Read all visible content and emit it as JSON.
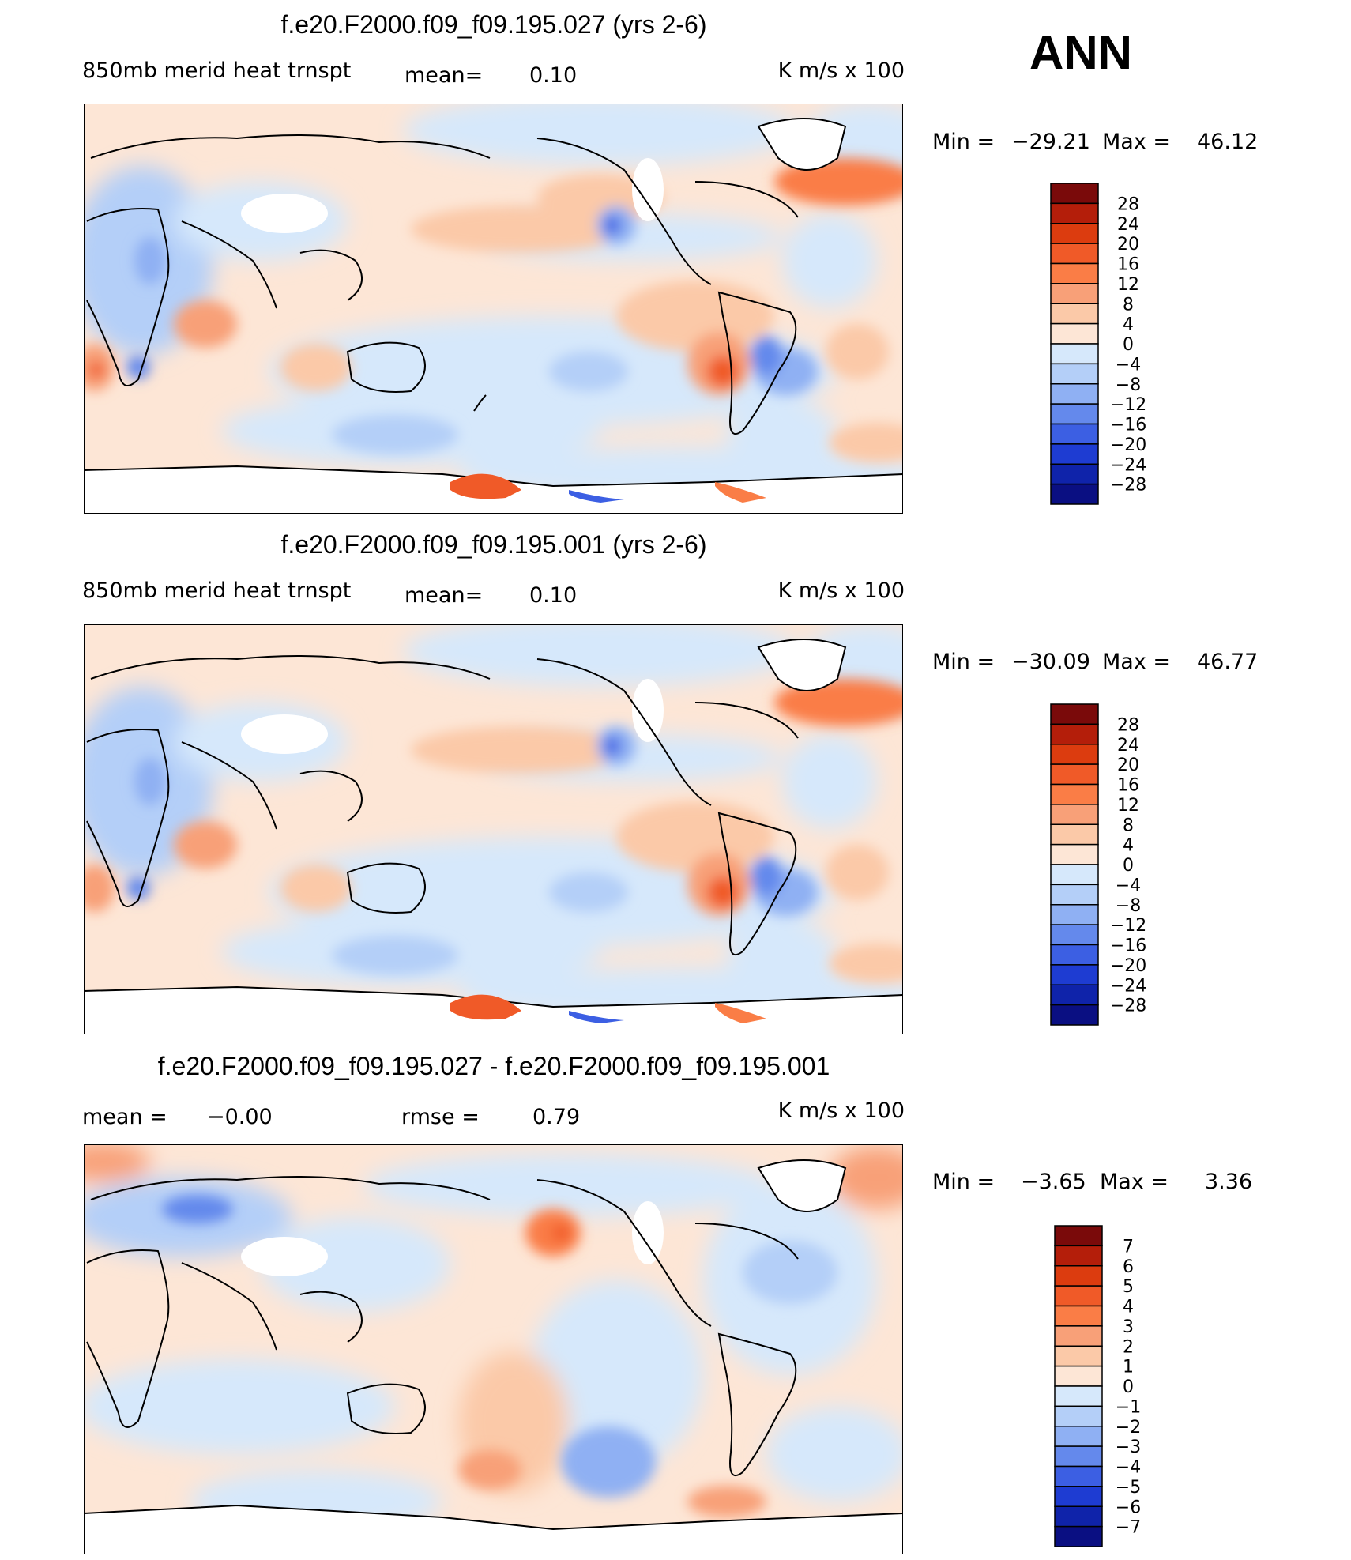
{
  "season_label": "ANN",
  "panels": [
    {
      "id": "test",
      "title": "f.e20.F2000.f09_f09.195.027 (yrs 2-6)",
      "left_label": "850mb merid heat trnspt",
      "center_label": "mean=",
      "center_value": "0.10",
      "units": "K m/s x 100",
      "min_label": "Min =",
      "min_value": "−29.21",
      "max_label": "Max =",
      "max_value": "46.12",
      "colorbar_labels": [
        "28",
        "24",
        "20",
        "16",
        "12",
        "8",
        "4",
        "0",
        "−4",
        "−8",
        "−12",
        "−16",
        "−20",
        "−24",
        "−28"
      ]
    },
    {
      "id": "control",
      "title": "f.e20.F2000.f09_f09.195.001 (yrs 2-6)",
      "left_label": "850mb merid heat trnspt",
      "center_label": "mean=",
      "center_value": "0.10",
      "units": "K m/s x 100",
      "min_label": "Min =",
      "min_value": "−30.09",
      "max_label": "Max =",
      "max_value": "46.77",
      "colorbar_labels": [
        "28",
        "24",
        "20",
        "16",
        "12",
        "8",
        "4",
        "0",
        "−4",
        "−8",
        "−12",
        "−16",
        "−20",
        "−24",
        "−28"
      ]
    },
    {
      "id": "difference",
      "title": "f.e20.F2000.f09_f09.195.027 - f.e20.F2000.f09_f09.195.001",
      "left_label": "mean =",
      "left_value": "−0.00",
      "center_label": "rmse =",
      "center_value": "0.79",
      "units": "K m/s x 100",
      "min_label": "Min =",
      "min_value": "−3.65",
      "max_label": "Max =",
      "max_value": "3.36",
      "colorbar_labels": [
        "7",
        "6",
        "5",
        "4",
        "3",
        "2",
        "1",
        "0",
        "−1",
        "−2",
        "−3",
        "−4",
        "−5",
        "−6",
        "−7"
      ]
    }
  ],
  "colors": {
    "warm": [
      "#7a0a0a",
      "#b41e0a",
      "#dc3c0f",
      "#f05a28",
      "#fa7d46",
      "#f8a078",
      "#fbc9a8",
      "#fde6d6"
    ],
    "cool": [
      "#d6e8fb",
      "#b4cff8",
      "#8fb0f3",
      "#6489ec",
      "#3c5fe3",
      "#1e3cd2",
      "#0f23aa",
      "#0a0f82"
    ],
    "land_outline": "#000000",
    "missing": "#ffffff"
  },
  "chart_data": [
    {
      "type": "heatmap",
      "title": "f.e20.F2000.f09_f09.195.027 (yrs 2-6)",
      "variable": "850mb merid heat trnspt",
      "units": "K m/s x 100",
      "mean": 0.1,
      "min": -29.21,
      "max": 46.12,
      "contour_levels": [
        -28,
        -24,
        -20,
        -16,
        -12,
        -8,
        -4,
        0,
        4,
        8,
        12,
        16,
        20,
        24,
        28
      ]
    },
    {
      "type": "heatmap",
      "title": "f.e20.F2000.f09_f09.195.001 (yrs 2-6)",
      "variable": "850mb merid heat trnspt",
      "units": "K m/s x 100",
      "mean": 0.1,
      "min": -30.09,
      "max": 46.77,
      "contour_levels": [
        -28,
        -24,
        -20,
        -16,
        -12,
        -8,
        -4,
        0,
        4,
        8,
        12,
        16,
        20,
        24,
        28
      ]
    },
    {
      "type": "heatmap",
      "title": "f.e20.F2000.f09_f09.195.027 - f.e20.F2000.f09_f09.195.001",
      "units": "K m/s x 100",
      "mean": -0.0,
      "rmse": 0.79,
      "min": -3.65,
      "max": 3.36,
      "contour_levels": [
        -7,
        -6,
        -5,
        -4,
        -3,
        -2,
        -1,
        0,
        1,
        2,
        3,
        4,
        5,
        6,
        7
      ]
    }
  ]
}
